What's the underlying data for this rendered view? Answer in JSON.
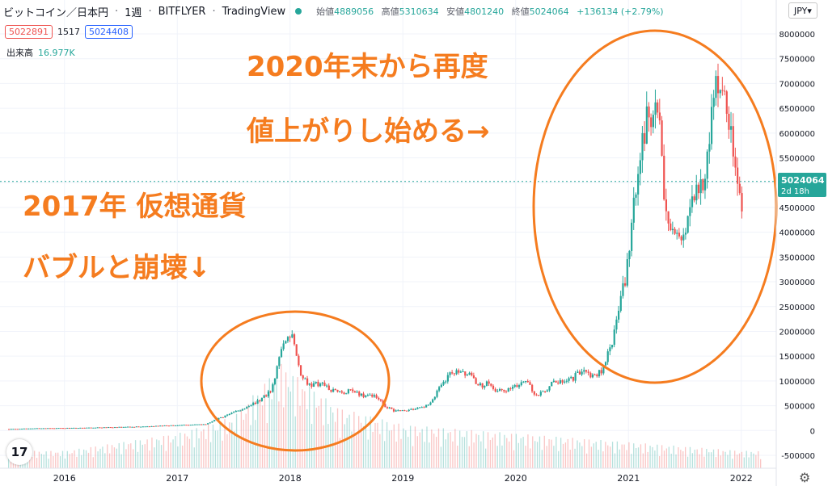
{
  "header": {
    "symbol": "ビットコイン／日本円",
    "interval": "1週",
    "exchange": "BITFLYER",
    "source": "TradingView",
    "open_label": "始値",
    "open": "4889056",
    "high_label": "高値",
    "high": "5310634",
    "low_label": "安値",
    "low": "4801240",
    "close_label": "終値",
    "close": "5024064",
    "change": "+136134 (+2.79%)",
    "bid": "5022891",
    "spread": "1517",
    "ask": "5024408",
    "volume_label": "出来高",
    "volume": "16.977K"
  },
  "currency": "JPY",
  "logo_text": "17",
  "price_tag": {
    "value": "5024064",
    "countdown": "2d 18h"
  },
  "annotations": {
    "bubble_line1": "2017年 仮想通貨",
    "bubble_line2": "バブルと崩壊↓",
    "rise_line1": "2020年末から再度",
    "rise_line2": "値上がりし始める→"
  },
  "colors": {
    "up": "#26a69a",
    "down": "#ef5350",
    "annotation": "#f57c1f",
    "price_tag": "#26a69a"
  },
  "chart_data": {
    "type": "candlestick",
    "title": "",
    "x_ticks": [
      "2016",
      "2017",
      "2018",
      "2019",
      "2020",
      "2021",
      "2022"
    ],
    "y_ticks": [
      "8000000",
      "7500000",
      "7000000",
      "6500000",
      "6000000",
      "5500000",
      "5000000",
      "4500000",
      "4000000",
      "3500000",
      "3000000",
      "2500000",
      "2000000",
      "1500000",
      "1000000",
      "500000",
      "0",
      "-500000"
    ],
    "ylim": [
      -500000,
      8000000
    ],
    "xlim": [
      "2015-07",
      "2022-03"
    ],
    "series": [
      {
        "x": [
          "2015-07",
          "2015-10",
          "2016-01",
          "2016-04",
          "2016-07",
          "2016-10",
          "2017-01",
          "2017-04",
          "2017-06",
          "2017-08",
          "2017-10",
          "2017-11",
          "2017-12",
          "2018-01",
          "2018-02",
          "2018-03",
          "2018-04",
          "2018-05",
          "2018-06",
          "2018-07",
          "2018-08",
          "2018-09",
          "2018-10",
          "2018-11",
          "2018-12",
          "2019-01",
          "2019-02",
          "2019-03",
          "2019-04",
          "2019-05",
          "2019-06",
          "2019-07",
          "2019-08",
          "2019-09",
          "2019-10",
          "2019-11",
          "2019-12",
          "2020-01",
          "2020-02",
          "2020-03",
          "2020-04",
          "2020-05",
          "2020-06",
          "2020-07",
          "2020-08",
          "2020-09",
          "2020-10",
          "2020-11",
          "2020-12",
          "2021-01",
          "2021-02",
          "2021-03",
          "2021-04",
          "2021-05",
          "2021-06",
          "2021-07",
          "2021-08",
          "2021-09",
          "2021-10",
          "2021-11",
          "2021-12",
          "2022-01"
        ],
        "values": [
          30000,
          45000,
          50000,
          60000,
          70000,
          85000,
          110000,
          130000,
          300000,
          450000,
          650000,
          850000,
          1700000,
          2000000,
          1100000,
          900000,
          950000,
          850000,
          750000,
          800000,
          750000,
          700000,
          720000,
          500000,
          380000,
          400000,
          430000,
          450000,
          600000,
          900000,
          1200000,
          1150000,
          1100000,
          900000,
          950000,
          800000,
          800000,
          900000,
          1000000,
          700000,
          800000,
          1000000,
          1000000,
          1050000,
          1250000,
          1100000,
          1200000,
          1700000,
          2500000,
          3500000,
          5500000,
          6300000,
          6500000,
          4200000,
          3800000,
          4000000,
          5000000,
          5000000,
          6800000,
          7300000,
          5500000,
          4300000
        ]
      }
    ],
    "volume": {
      "x": [
        "2016",
        "2017",
        "2017-07",
        "2017-12",
        "2018-06",
        "2019",
        "2020",
        "2021",
        "2022"
      ],
      "values": [
        20000,
        40000,
        60000,
        120000,
        70000,
        50000,
        40000,
        30000,
        20000
      ]
    }
  }
}
